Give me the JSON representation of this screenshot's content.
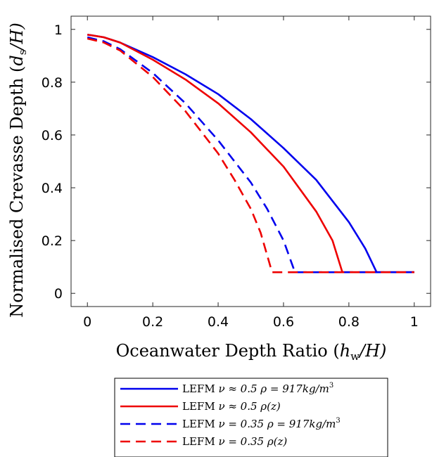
{
  "chart_data": {
    "type": "line",
    "title": "",
    "xlabel": "Oceanwater Depth Ratio (h_w/H)",
    "ylabel": "Normalised Crevasse Depth (d_s/H)",
    "xlim": [
      -0.05,
      1.05
    ],
    "ylim": [
      -0.05,
      1.05
    ],
    "xticks": [
      0,
      0.2,
      0.4,
      0.6,
      0.8,
      1
    ],
    "xtick_labels": [
      "0",
      "0.2",
      "0.4",
      "0.6",
      "0.8",
      "1"
    ],
    "yticks": [
      0,
      0.2,
      0.4,
      0.6,
      0.8,
      1
    ],
    "ytick_labels": [
      "0",
      "0.2",
      "0.4",
      "0.6",
      "0.8",
      "1"
    ],
    "grid": false,
    "legend_position": "bottom-center, outside plot",
    "series": [
      {
        "name": "LEFM ν ≈ 0.5 ρ = 917kg/m³",
        "color": "#0000ee",
        "dash": "solid",
        "x": [
          0,
          0.05,
          0.1,
          0.2,
          0.3,
          0.4,
          0.5,
          0.6,
          0.7,
          0.8,
          0.85,
          0.885,
          0.9,
          1.0
        ],
        "y": [
          0.98,
          0.97,
          0.95,
          0.895,
          0.83,
          0.755,
          0.66,
          0.55,
          0.43,
          0.27,
          0.17,
          0.08,
          0.08,
          0.08
        ]
      },
      {
        "name": "LEFM ν ≈ 0.5 ρ(z)",
        "color": "#ee0000",
        "dash": "solid",
        "x": [
          0,
          0.05,
          0.1,
          0.2,
          0.3,
          0.4,
          0.5,
          0.6,
          0.7,
          0.75,
          0.78,
          0.8,
          1.0
        ],
        "y": [
          0.98,
          0.97,
          0.95,
          0.885,
          0.81,
          0.72,
          0.61,
          0.48,
          0.31,
          0.2,
          0.08,
          0.08,
          0.08
        ]
      },
      {
        "name": "LEFM ν = 0.35 ρ = 917kg/m³",
        "color": "#0000ee",
        "dash": "dashed",
        "x": [
          0,
          0.05,
          0.1,
          0.2,
          0.3,
          0.4,
          0.5,
          0.55,
          0.6,
          0.635,
          0.65,
          1.0
        ],
        "y": [
          0.97,
          0.955,
          0.925,
          0.835,
          0.72,
          0.58,
          0.42,
          0.32,
          0.2,
          0.08,
          0.08,
          0.08
        ]
      },
      {
        "name": "LEFM ν = 0.35 ρ(z)",
        "color": "#ee0000",
        "dash": "dashed",
        "x": [
          0,
          0.05,
          0.1,
          0.2,
          0.3,
          0.4,
          0.45,
          0.5,
          0.53,
          0.565,
          0.6,
          1.0
        ],
        "y": [
          0.965,
          0.95,
          0.92,
          0.82,
          0.69,
          0.53,
          0.43,
          0.32,
          0.23,
          0.08,
          0.08,
          0.08
        ]
      }
    ]
  },
  "legend_items": [
    {
      "prefix": "LEFM ",
      "math": "ν ≈ 0.5 ρ = 917kg/m",
      "sup": "3"
    },
    {
      "prefix": "LEFM ",
      "math": "ν ≈ 0.5 ρ(z)",
      "sup": ""
    },
    {
      "prefix": "LEFM ",
      "math": "ν = 0.35 ρ = 917kg/m",
      "sup": "3"
    },
    {
      "prefix": "LEFM ",
      "math": "ν = 0.35 ρ(z)",
      "sup": ""
    }
  ],
  "axis_titles": {
    "x_main": "Oceanwater Depth Ratio (",
    "x_var": "h",
    "x_sub": "w",
    "x_tail": "/H)",
    "y_main": "Normalised Crevasse Depth (",
    "y_var": "d",
    "y_sub": "s",
    "y_tail": "/H)"
  }
}
